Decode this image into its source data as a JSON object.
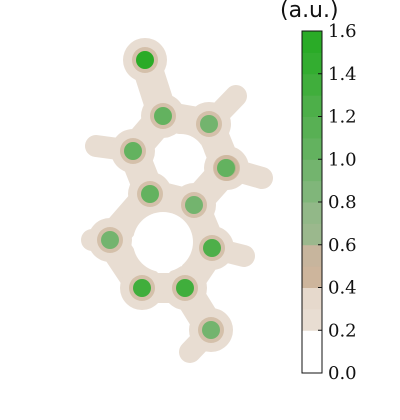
{
  "chart_data": {
    "type": "heatmap",
    "title": "",
    "colorbar": {
      "unit_label": "(a.u.)",
      "range": [
        0.0,
        1.6
      ],
      "ticks": [
        {
          "value": 0.0,
          "label": "0.0"
        },
        {
          "value": 0.2,
          "label": "0.2"
        },
        {
          "value": 0.4,
          "label": "0.4"
        },
        {
          "value": 0.6,
          "label": "0.6"
        },
        {
          "value": 0.8,
          "label": "0.8"
        },
        {
          "value": 1.0,
          "label": "1.0"
        },
        {
          "value": 1.2,
          "label": "1.2"
        },
        {
          "value": 1.4,
          "label": "1.4"
        },
        {
          "value": 1.6,
          "label": "1.6"
        }
      ],
      "bins": [
        {
          "from": 0.0,
          "to": 0.2,
          "color": "#ffffff"
        },
        {
          "from": 0.2,
          "to": 0.3,
          "color": "#e8ddd2"
        },
        {
          "from": 0.3,
          "to": 0.4,
          "color": "#e6d9cc"
        },
        {
          "from": 0.4,
          "to": 0.5,
          "color": "#cdb59c"
        },
        {
          "from": 0.5,
          "to": 0.6,
          "color": "#c7b59d"
        },
        {
          "from": 0.6,
          "to": 0.7,
          "color": "#9bb88d"
        },
        {
          "from": 0.7,
          "to": 0.8,
          "color": "#92b888"
        },
        {
          "from": 0.8,
          "to": 0.9,
          "color": "#80b67a"
        },
        {
          "from": 0.9,
          "to": 1.0,
          "color": "#73b46e"
        },
        {
          "from": 1.0,
          "to": 1.1,
          "color": "#63b25f"
        },
        {
          "from": 1.1,
          "to": 1.2,
          "color": "#58b054"
        },
        {
          "from": 1.2,
          "to": 1.3,
          "color": "#4daf49"
        },
        {
          "from": 1.3,
          "to": 1.4,
          "color": "#40ae3c"
        },
        {
          "from": 1.4,
          "to": 1.5,
          "color": "#33ad30"
        },
        {
          "from": 1.5,
          "to": 1.6,
          "color": "#2aab27"
        }
      ]
    },
    "molecule_map": {
      "background_level": 0.25,
      "atoms": [
        {
          "id": 1,
          "peak": 1.5
        },
        {
          "id": 2,
          "peak": 1.0
        },
        {
          "id": 3,
          "peak": 0.95
        },
        {
          "id": 4,
          "peak": 1.0
        },
        {
          "id": 5,
          "peak": 1.0
        },
        {
          "id": 6,
          "peak": 1.0
        },
        {
          "id": 7,
          "peak": 0.95
        },
        {
          "id": 8,
          "peak": 0.95
        },
        {
          "id": 9,
          "peak": 1.2
        },
        {
          "id": 10,
          "peak": 1.3
        },
        {
          "id": 11,
          "peak": 1.3
        },
        {
          "id": 12,
          "peak": 0.9
        },
        {
          "id": 13,
          "peak": 1.0
        }
      ]
    }
  }
}
